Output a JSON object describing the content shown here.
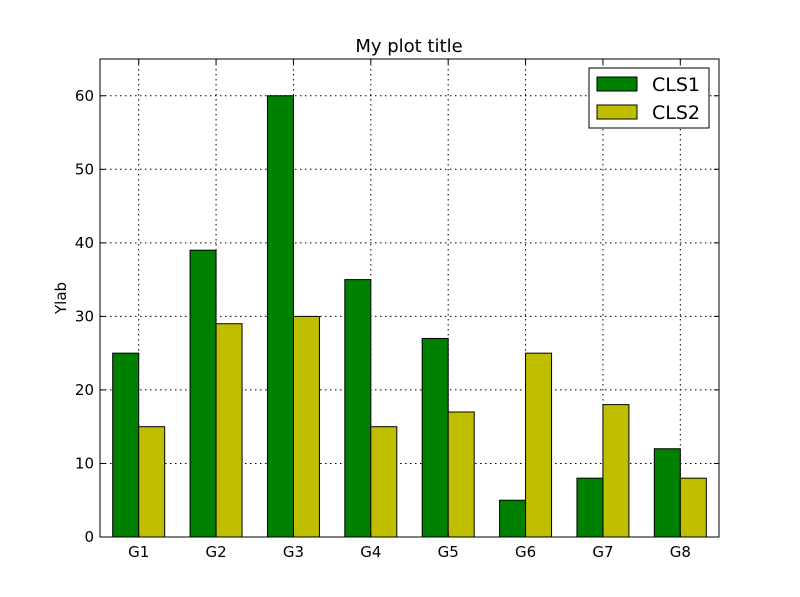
{
  "chart_data": {
    "type": "bar",
    "title": "My plot title",
    "xlabel": "",
    "ylabel": "Ylab",
    "categories": [
      "G1",
      "G2",
      "G3",
      "G4",
      "G5",
      "G6",
      "G7",
      "G8"
    ],
    "series": [
      {
        "name": "CLS1",
        "color": "#008000",
        "values": [
          25,
          39,
          60,
          35,
          27,
          5,
          8,
          12
        ]
      },
      {
        "name": "CLS2",
        "color": "#bfbf00",
        "values": [
          15,
          29,
          30,
          15,
          17,
          25,
          18,
          8
        ]
      }
    ],
    "ylim": [
      0,
      65
    ],
    "yticks": [
      0,
      10,
      20,
      30,
      40,
      50,
      60
    ],
    "grid": true,
    "legend_position": "top-right"
  }
}
